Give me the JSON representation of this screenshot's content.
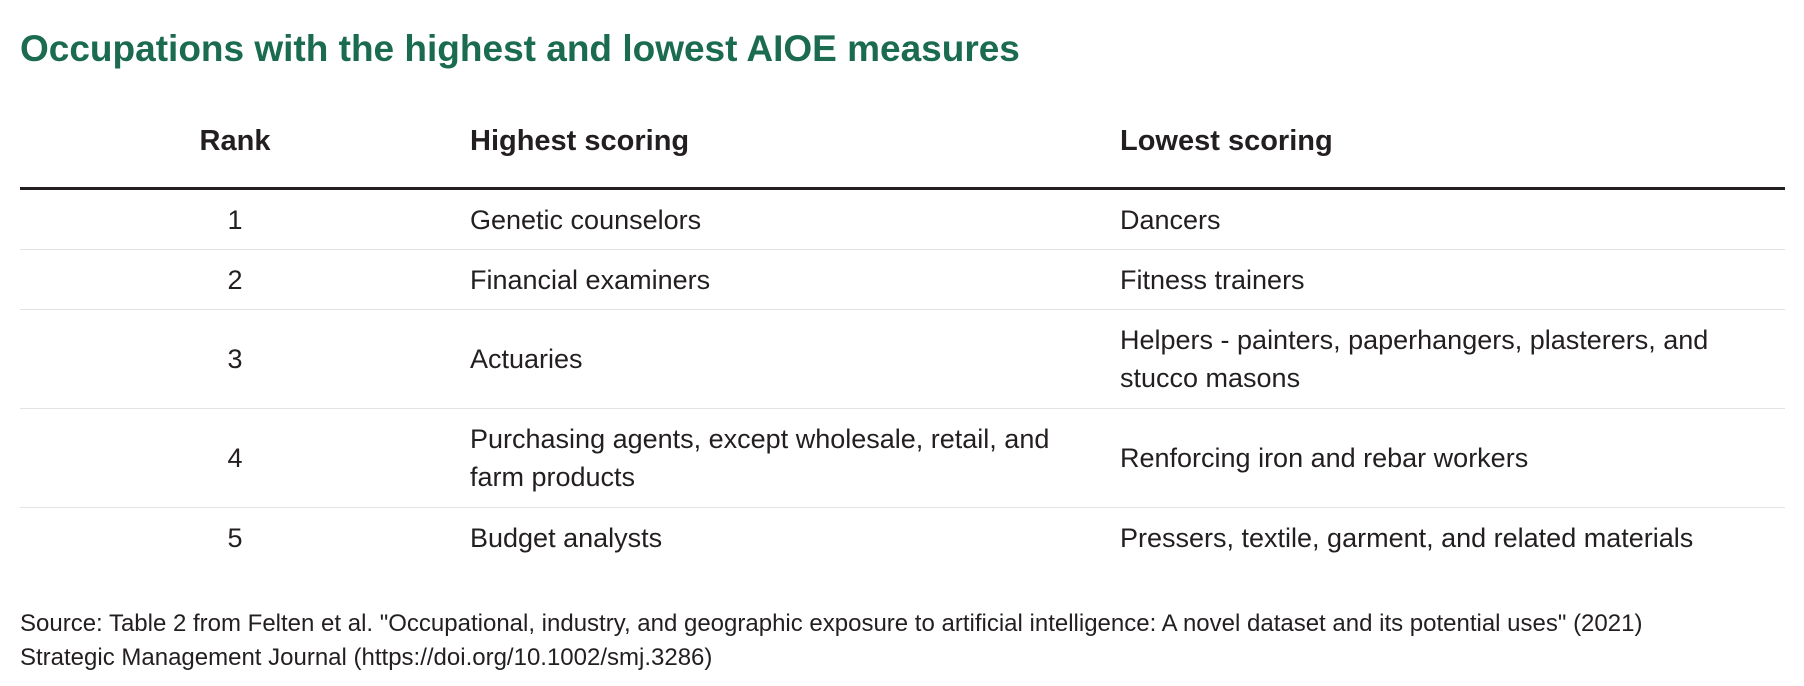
{
  "title": "Occupations with the highest and lowest AIOE measures",
  "table": {
    "headers": {
      "rank": "Rank",
      "highest": "Highest scoring",
      "lowest": "Lowest scoring"
    },
    "rows": [
      {
        "rank": "1",
        "highest": "Genetic counselors",
        "lowest": "Dancers"
      },
      {
        "rank": "2",
        "highest": "Financial examiners",
        "lowest": "Fitness trainers"
      },
      {
        "rank": "3",
        "highest": "Actuaries",
        "lowest": "Helpers - painters, paperhangers, plasterers, and stucco masons"
      },
      {
        "rank": "4",
        "highest": "Purchasing agents, except wholesale, retail, and farm products",
        "lowest": "Renforcing iron and rebar workers"
      },
      {
        "rank": "5",
        "highest": "Budget analysts",
        "lowest": "Pressers, textile, garment, and related materials"
      }
    ]
  },
  "source": {
    "line1": "Source: Table 2 from Felten et al. \"Occupational, industry, and geographic exposure to artificial intelligence: A novel dataset and its potential uses\" (2021)",
    "line2": "Strategic Management Journal (https://doi.org/10.1002/smj.3286)"
  },
  "colors": {
    "title": "#1a6b4f",
    "text": "#231f20",
    "rule": "#231f20",
    "row_divider": "#e2e2e2"
  }
}
